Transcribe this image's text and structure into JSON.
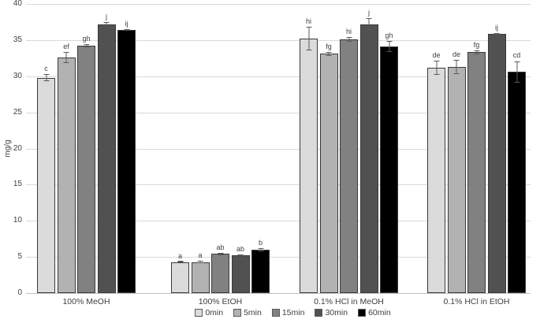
{
  "chart_data": {
    "type": "bar",
    "title": "",
    "xlabel": "",
    "ylabel": "mg/g",
    "ylim": [
      0,
      40
    ],
    "yticks": [
      0,
      5,
      10,
      15,
      20,
      25,
      30,
      35,
      40
    ],
    "grid": true,
    "legend_position": "bottom",
    "categories": [
      "100% MeOH",
      "100% EtOH",
      "0.1% HCl in MeOH",
      "0.1% HCl in EtOH"
    ],
    "series": [
      {
        "name": "0min",
        "color": "#dbdbdb",
        "values": [
          29.8,
          4.3,
          35.2,
          31.2
        ],
        "errors": [
          0.5,
          0.1,
          1.6,
          1.0
        ],
        "sig_letters": [
          "c",
          "a",
          "hi",
          "de"
        ]
      },
      {
        "name": "5min",
        "color": "#b2b2b2",
        "values": [
          32.6,
          4.3,
          33.1,
          31.3
        ],
        "errors": [
          0.8,
          0.2,
          0.3,
          1.0
        ],
        "sig_letters": [
          "ef",
          "a",
          "fg",
          "de"
        ]
      },
      {
        "name": "15min",
        "color": "#818181",
        "values": [
          34.2,
          5.4,
          35.1,
          33.3
        ],
        "errors": [
          0.2,
          0.15,
          0.3,
          0.3
        ],
        "sig_letters": [
          "gh",
          "ab",
          "hi",
          "fg"
        ]
      },
      {
        "name": "30min",
        "color": "#515151",
        "values": [
          37.2,
          5.2,
          37.2,
          35.9
        ],
        "errors": [
          0.25,
          0.1,
          0.8,
          0.1
        ],
        "sig_letters": [
          "j",
          "ab",
          "j",
          "ij"
        ]
      },
      {
        "name": "60min",
        "color": "#000000",
        "values": [
          36.4,
          6.0,
          34.1,
          30.6
        ],
        "errors": [
          0.15,
          0.2,
          0.8,
          1.5
        ],
        "sig_letters": [
          "ij",
          "b",
          "gh",
          "cd"
        ]
      }
    ],
    "colors": {
      "gridline": "#d9d9d9",
      "axis_text": "#404040",
      "error_bar": "#595959",
      "bar_border": "#3a3a3a"
    }
  }
}
